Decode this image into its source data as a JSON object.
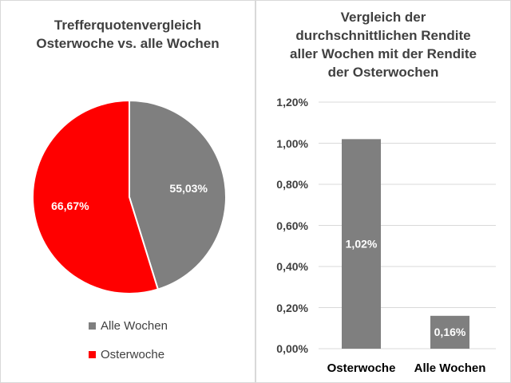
{
  "chart_data": [
    {
      "type": "pie",
      "title": "Trefferquotenvergleich\nOsterwoche vs. alle Wochen",
      "slices": [
        {
          "name": "Alle Wochen",
          "value": 55.03,
          "label": "55,03%",
          "color": "#7f7f7f"
        },
        {
          "name": "Osterwoche",
          "value": 66.67,
          "label": "66,67%",
          "color": "#ff0000"
        }
      ],
      "legend": [
        "Alle Wochen",
        "Osterwoche"
      ],
      "legend_position": "bottom"
    },
    {
      "type": "bar",
      "title": "Vergleich der\ndurchschnittlichen Rendite\naller Wochen mit der Rendite\nder Osterwochen",
      "categories": [
        "Osterwoche",
        "Alle Wochen"
      ],
      "values": [
        1.02,
        0.16
      ],
      "data_labels": [
        "1,02%",
        "0,16%"
      ],
      "ylim": [
        0,
        1.2
      ],
      "yticks": [
        0,
        0.2,
        0.4,
        0.6,
        0.8,
        1.0,
        1.2
      ],
      "ytick_labels": [
        "0,00%",
        "0,20%",
        "0,40%",
        "0,60%",
        "0,80%",
        "1,00%",
        "1,20%"
      ],
      "xlabel": "",
      "ylabel": "",
      "grid": true,
      "bar_color": "#7f7f7f",
      "gridline_color": "#d9d9d9"
    }
  ]
}
